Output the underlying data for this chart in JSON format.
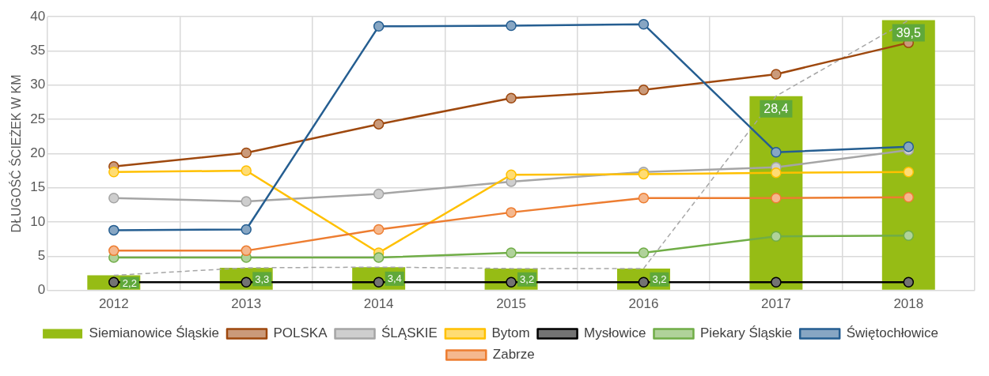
{
  "chart_data": {
    "type": "line",
    "ylabel": "DŁUGOŚĆ ŚCIEŻEK W KM",
    "categories": [
      "2012",
      "2013",
      "2014",
      "2015",
      "2016",
      "2017",
      "2018"
    ],
    "ylim": [
      0,
      40
    ],
    "yticks": [
      0,
      5,
      10,
      15,
      20,
      25,
      30,
      35,
      40
    ],
    "grid": true,
    "legend": "bottom",
    "marker": "circle",
    "series": [
      {
        "name": "Siemianowice Śląskie",
        "type": "bar",
        "color": "#96bc15",
        "values": [
          2.2,
          3.3,
          3.4,
          3.2,
          3.2,
          28.4,
          39.5
        ],
        "value_labels": [
          "2,2",
          "3,3",
          "3,4",
          "3,2",
          "3,2",
          "28,4",
          "39,5"
        ]
      },
      {
        "type": "line",
        "color": "#a6a6a6",
        "line_style": "dashed",
        "marker": "none",
        "values": [
          2.2,
          3.3,
          3.4,
          3.2,
          3.2,
          28.4,
          39.5
        ]
      },
      {
        "name": "POLSKA",
        "color": "#9e480e",
        "values": [
          18.1,
          20.1,
          24.3,
          28.1,
          29.3,
          31.6,
          36.2
        ]
      },
      {
        "name": "ŚLĄSKIE",
        "color": "#a5a5a5",
        "values": [
          13.5,
          13.0,
          14.1,
          15.9,
          17.3,
          18.0,
          20.5
        ]
      },
      {
        "name": "Bytom",
        "color": "#ffc000",
        "values": [
          17.3,
          17.5,
          5.5,
          16.9,
          17.0,
          17.2,
          17.3
        ]
      },
      {
        "name": "Mysłowice",
        "color": "#000000",
        "values": [
          1.2,
          1.2,
          1.2,
          1.2,
          1.2,
          1.2,
          1.2
        ]
      },
      {
        "name": "Piekary Śląskie",
        "color": "#70ad47",
        "values": [
          4.8,
          4.8,
          4.8,
          5.5,
          5.5,
          7.9,
          8.0
        ]
      },
      {
        "name": "Świętochłowice",
        "color": "#255e91",
        "values": [
          8.8,
          8.9,
          38.6,
          38.7,
          38.9,
          20.2,
          21.0
        ]
      },
      {
        "name": "Zabrze",
        "color": "#ed7d31",
        "values": [
          5.8,
          5.8,
          8.9,
          11.4,
          13.5,
          13.5,
          13.6
        ]
      }
    ]
  }
}
